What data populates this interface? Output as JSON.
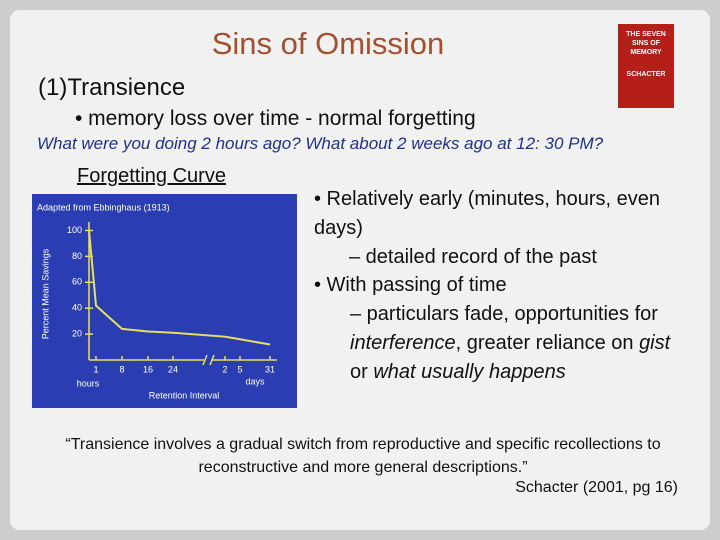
{
  "header": {
    "title": "Sins of Omission",
    "section": "(1)Transience",
    "bullet": "• memory loss over time - normal forgetting",
    "question": "What were you doing 2 hours ago? What about 2 weeks ago at 12: 30 PM?"
  },
  "book": {
    "title": "THE SEVEN SINS OF MEMORY",
    "author": "SCHACTER"
  },
  "figure": {
    "caption": "Forgetting Curve",
    "chart_data": {
      "type": "line",
      "title": "Adapted from Ebbinghaus (1913)",
      "y_label": "Percent Mean Savings",
      "x_label": "Retention Interval",
      "x_unit_labels": [
        "hours",
        "days"
      ],
      "categories": [
        null,
        "1",
        "8",
        "16",
        "24",
        "2",
        "5",
        "31"
      ],
      "values": [
        100,
        42,
        24,
        22,
        21,
        18,
        16,
        12
      ],
      "color": "#e8e060",
      "ylim": [
        0,
        105
      ],
      "yticks": [
        20,
        40,
        60,
        80,
        100
      ]
    }
  },
  "body": {
    "bullet_1": "• Relatively early (minutes, hours, even days)",
    "bullet_1_sub": "– detailed record of the past",
    "bullet_2": "• With passing of time",
    "bullet_2_sub": [
      "– particulars fade, opportunities for ",
      "interference",
      ", greater reliance on ",
      "gist",
      " or ",
      "what usually happens"
    ]
  },
  "quote": {
    "text": "“Transience involves a gradual switch from reproductive and specific recollections to reconstructive and more general descriptions.”",
    "source": "Schacter (2001, pg 16)"
  }
}
